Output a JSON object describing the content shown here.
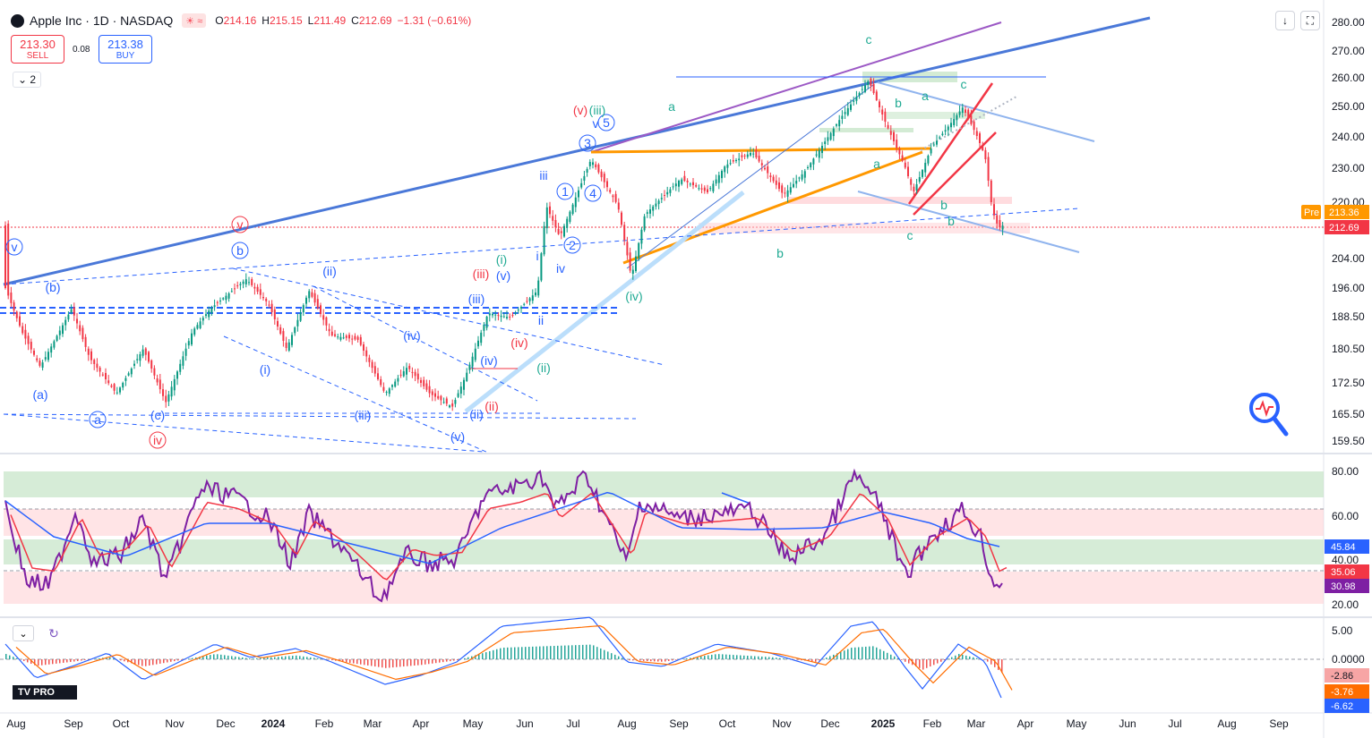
{
  "header": {
    "symbol_title": "Apple Inc · 1D · NASDAQ",
    "market_status": "☀ ≈",
    "ohlc": {
      "o_label": "O",
      "o": "214.16",
      "h_label": "H",
      "h": "215.15",
      "l_label": "L",
      "l": "211.49",
      "c_label": "C",
      "c": "212.69",
      "change": "−1.31 (−0.61%)"
    }
  },
  "trade": {
    "sell_price": "213.30",
    "sell_label": "SELL",
    "spread": "0.08",
    "buy_price": "213.38",
    "buy_label": "BUY"
  },
  "indicators_collapse": "2",
  "price_axis": {
    "ticks": [
      "280.00",
      "270.00",
      "260.00",
      "250.00",
      "240.00",
      "230.00",
      "220.00",
      "204.00",
      "196.00",
      "188.50",
      "180.50",
      "172.50",
      "165.50",
      "159.50"
    ],
    "pre_label": "Pre",
    "pre_price": "213.36",
    "last_price": "212.69"
  },
  "rsi_axis": {
    "ticks": [
      "80.00",
      "60.00",
      "40.00",
      "20.00"
    ],
    "values": [
      "45.84",
      "35.06",
      "30.98"
    ]
  },
  "macd_axis": {
    "ticks": [
      "5.00",
      "0.0000"
    ],
    "values": [
      "-2.86",
      "-3.76",
      "-6.62"
    ]
  },
  "time_axis": [
    "Aug",
    "Sep",
    "Oct",
    "Nov",
    "Dec",
    "2024",
    "Feb",
    "Mar",
    "Apr",
    "May",
    "Jun",
    "Jul",
    "Aug",
    "Sep",
    "Oct",
    "Nov",
    "Dec",
    "2025",
    "Feb",
    "Mar",
    "Apr",
    "May",
    "Jun",
    "Jul",
    "Aug",
    "Sep"
  ],
  "wave_labels": [
    {
      "t": "v",
      "c": "#2962ff"
    },
    {
      "t": "(b)",
      "c": "#2962ff"
    },
    {
      "t": "(a)",
      "c": "#2962ff"
    },
    {
      "t": "a",
      "c": "#2962ff"
    },
    {
      "t": "(c)",
      "c": "#2962ff"
    },
    {
      "t": "iv",
      "c": "#f23645"
    },
    {
      "t": "v",
      "c": "#f23645"
    },
    {
      "t": "b",
      "c": "#2962ff"
    },
    {
      "t": "(i)",
      "c": "#2962ff"
    },
    {
      "t": "(ii)",
      "c": "#2962ff"
    },
    {
      "t": "(iii)",
      "c": "#2962ff"
    },
    {
      "t": "(iv)",
      "c": "#2962ff"
    },
    {
      "t": "(v)",
      "c": "#2962ff"
    },
    {
      "t": "(ii)",
      "c": "#2962ff"
    },
    {
      "t": "(iii)",
      "c": "#2962ff"
    },
    {
      "t": "(iv)",
      "c": "#2962ff"
    },
    {
      "t": "(iii)",
      "c": "#f23645"
    },
    {
      "t": "(iv)",
      "c": "#f23645"
    },
    {
      "t": "(ii)",
      "c": "#f23645"
    },
    {
      "t": "(i)",
      "c": "#22ab94"
    },
    {
      "t": "(v)",
      "c": "#2962ff"
    },
    {
      "t": "(ii)",
      "c": "#22ab94"
    },
    {
      "t": "i",
      "c": "#2962ff"
    },
    {
      "t": "ii",
      "c": "#2962ff"
    },
    {
      "t": "iii",
      "c": "#2962ff"
    },
    {
      "t": "iv",
      "c": "#2962ff"
    },
    {
      "t": "1",
      "c": "#2962ff"
    },
    {
      "t": "2",
      "c": "#2962ff"
    },
    {
      "t": "3",
      "c": "#2962ff"
    },
    {
      "t": "4",
      "c": "#2962ff"
    },
    {
      "t": "5",
      "c": "#2962ff"
    },
    {
      "t": "(v)",
      "c": "#f23645"
    },
    {
      "t": "(iii)",
      "c": "#22ab94"
    },
    {
      "t": "v",
      "c": "#2962ff"
    },
    {
      "t": "(iv)",
      "c": "#22ab94"
    },
    {
      "t": "a",
      "c": "#22ab94"
    },
    {
      "t": "b",
      "c": "#22ab94"
    },
    {
      "t": "c",
      "c": "#22ab94"
    },
    {
      "t": "a",
      "c": "#22ab94"
    },
    {
      "t": "b",
      "c": "#22ab94"
    },
    {
      "t": "c",
      "c": "#22ab94"
    },
    {
      "t": "a",
      "c": "#22ab94"
    },
    {
      "t": "b",
      "c": "#22ab94"
    },
    {
      "t": "c",
      "c": "#22ab94"
    },
    {
      "t": "b",
      "c": "#22ab94"
    }
  ],
  "colors": {
    "up": "#089981",
    "down": "#f23645",
    "blue": "#2962ff",
    "orange": "#ff9800",
    "purple": "#9c27b0",
    "rsi_line": "#7e1fa3",
    "rsi_ma": "#2962ff",
    "macd": "#2962ff",
    "signal": "#ff6d00"
  },
  "brand": "PRO",
  "icons": {
    "download": "down-arrow-icon",
    "fullscreen": "fullscreen-icon",
    "zoom": "magnifier-icon"
  }
}
